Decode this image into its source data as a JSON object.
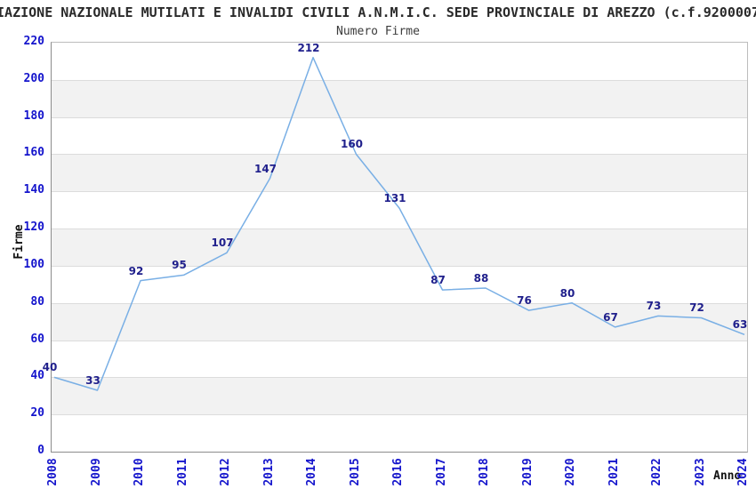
{
  "header": {
    "title": "IAZIONE NAZIONALE MUTILATI E INVALIDI CIVILI A.N.M.I.C. SEDE PROVINCIALE DI AREZZO (c.f.9200007",
    "subtitle": "Numero Firme"
  },
  "chart_data": {
    "type": "line",
    "title": "Numero Firme",
    "xlabel": "Anno",
    "ylabel": "Firme",
    "categories": [
      "2008",
      "2009",
      "2010",
      "2011",
      "2012",
      "2013",
      "2014",
      "2015",
      "2016",
      "2017",
      "2018",
      "2019",
      "2020",
      "2021",
      "2022",
      "2023",
      "2024"
    ],
    "values": [
      40,
      33,
      92,
      95,
      107,
      147,
      212,
      160,
      131,
      87,
      88,
      76,
      80,
      67,
      73,
      72,
      63
    ],
    "ylim": [
      0,
      220
    ],
    "ytick_step": 20,
    "yticks": [
      0,
      20,
      40,
      60,
      80,
      100,
      120,
      140,
      160,
      180,
      200,
      220
    ],
    "grid": true,
    "legend_position": "none",
    "colors": {
      "line": "#79afe5",
      "point_label": "#20208c",
      "tick_label": "#1414cc",
      "band_even": "#ffffff",
      "band_odd": "#f2f2f2",
      "gridline": "#dcdcdc",
      "title_text": "#2a2a2a"
    }
  }
}
